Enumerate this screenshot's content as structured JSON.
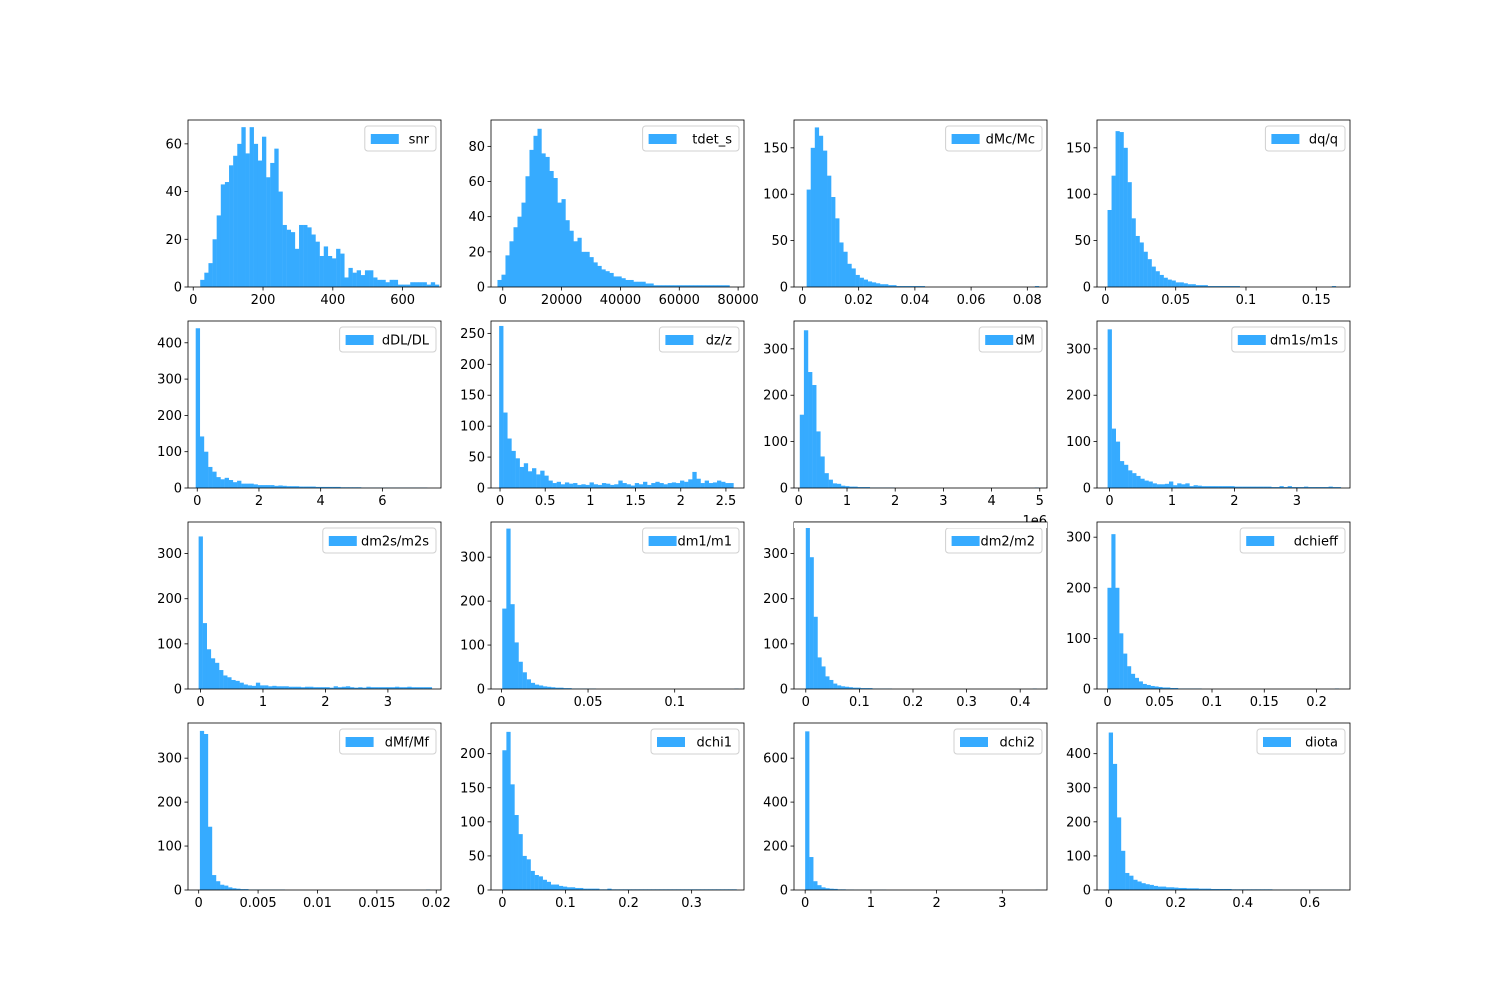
{
  "bar_color": "#36abff",
  "chart_data": [
    {
      "type": "bar",
      "legend": "snr",
      "legend_position": "upper-right",
      "xlim": [
        -15,
        710
      ],
      "ylim": [
        0,
        70
      ],
      "xticks": [
        0,
        200,
        400,
        600
      ],
      "yticks": [
        0,
        20,
        40,
        60
      ],
      "bin_width": 11.8,
      "x_start": 20,
      "values": [
        3,
        6,
        10,
        20,
        30,
        43,
        44,
        51,
        55,
        60,
        67,
        56,
        67,
        60,
        53,
        63,
        46,
        52,
        58,
        40,
        26,
        24,
        23,
        16,
        26,
        26,
        25,
        22,
        19,
        13,
        17,
        13,
        12,
        16,
        14,
        4,
        8,
        6,
        7,
        5,
        7,
        7,
        4,
        3,
        3,
        2,
        3,
        3,
        1,
        1,
        1,
        2,
        2,
        2,
        2,
        1,
        2,
        1
      ]
    },
    {
      "type": "bar",
      "legend": "tdet_s",
      "legend_position": "upper-right",
      "xlim": [
        -4000,
        82000
      ],
      "ylim": [
        0,
        95
      ],
      "xticks": [
        0,
        20000,
        40000,
        60000,
        80000
      ],
      "yticks": [
        0,
        20,
        40,
        60,
        80
      ],
      "bin_width": 1360,
      "x_start": -1800,
      "values": [
        4,
        7,
        18,
        26,
        34,
        40,
        48,
        63,
        78,
        86,
        90,
        76,
        74,
        66,
        62,
        48,
        50,
        38,
        32,
        26,
        28,
        20,
        20,
        17,
        14,
        12,
        10,
        9,
        8,
        6,
        6,
        5,
        4,
        4,
        3,
        3,
        3,
        2,
        2,
        1,
        1,
        1,
        1,
        1,
        1,
        1,
        1,
        1,
        1,
        1,
        1,
        1,
        1,
        1,
        1,
        1,
        1,
        1
      ]
    },
    {
      "type": "bar",
      "legend": "dMc/Mc",
      "legend_position": "upper-right",
      "xlim": [
        -0.003,
        0.087
      ],
      "ylim": [
        0,
        180
      ],
      "xticks": [
        0,
        0.02,
        0.04,
        0.06,
        0.08
      ],
      "yticks": [
        0,
        50,
        100,
        150
      ],
      "bin_width": 0.00145,
      "x_start": 0.0015,
      "values": [
        105,
        150,
        172,
        163,
        147,
        120,
        97,
        74,
        48,
        38,
        25,
        20,
        13,
        10,
        8,
        6,
        5,
        4,
        3,
        3,
        2,
        2,
        1,
        1,
        1,
        1,
        1,
        1,
        1,
        0,
        0,
        0,
        0,
        0,
        0,
        0,
        0,
        0,
        0,
        0,
        0,
        0,
        0,
        0,
        0,
        0,
        0,
        0,
        0,
        0,
        0,
        0,
        0,
        0,
        0,
        0,
        1
      ]
    },
    {
      "type": "bar",
      "legend": "dq/q",
      "legend_position": "upper-right",
      "xlim": [
        -0.006,
        0.174
      ],
      "ylim": [
        0,
        180
      ],
      "xticks": [
        0,
        0.05,
        0.1,
        0.15
      ],
      "yticks": [
        0,
        50,
        100,
        150
      ],
      "bin_width": 0.00285,
      "x_start": 0.0015,
      "values": [
        83,
        120,
        168,
        167,
        150,
        113,
        74,
        55,
        48,
        38,
        30,
        22,
        17,
        13,
        10,
        8,
        7,
        5,
        5,
        4,
        3,
        3,
        2,
        2,
        2,
        1,
        1,
        1,
        1,
        1,
        1,
        1,
        1,
        0,
        0,
        0,
        0,
        0,
        0,
        0,
        0,
        0,
        0,
        0,
        0,
        0,
        0,
        0,
        0,
        0,
        0,
        0,
        0,
        0,
        0,
        0,
        1
      ]
    },
    {
      "type": "bar",
      "legend": "dDL/DL",
      "legend_position": "upper-right",
      "xlim": [
        -0.3,
        7.9
      ],
      "ylim": [
        0,
        460
      ],
      "xticks": [
        0,
        2,
        4,
        6
      ],
      "yticks": [
        0,
        100,
        200,
        300,
        400
      ],
      "bin_width": 0.134,
      "x_start": -0.05,
      "values": [
        440,
        142,
        100,
        58,
        45,
        30,
        24,
        28,
        22,
        16,
        20,
        12,
        12,
        12,
        10,
        8,
        8,
        8,
        8,
        6,
        7,
        6,
        5,
        5,
        5,
        4,
        4,
        4,
        4,
        3,
        3,
        3,
        3,
        3,
        3,
        2,
        2,
        2,
        2,
        2,
        1,
        1,
        1,
        1,
        1,
        1,
        1,
        1,
        1,
        1,
        1,
        1,
        1,
        1,
        1,
        1
      ]
    },
    {
      "type": "bar",
      "legend": "dz/z",
      "legend_position": "upper-right",
      "xlim": [
        -0.1,
        2.7
      ],
      "ylim": [
        0,
        270
      ],
      "xticks": [
        0,
        0.5,
        1,
        1.5,
        2,
        2.5
      ],
      "yticks": [
        0,
        50,
        100,
        150,
        200,
        250
      ],
      "bin_width": 0.0455,
      "x_start": -0.01,
      "values": [
        262,
        122,
        80,
        60,
        48,
        34,
        40,
        27,
        32,
        22,
        28,
        20,
        12,
        8,
        10,
        6,
        9,
        7,
        8,
        5,
        6,
        5,
        9,
        6,
        5,
        8,
        7,
        5,
        6,
        12,
        8,
        6,
        4,
        8,
        6,
        10,
        5,
        8,
        10,
        8,
        6,
        8,
        9,
        8,
        12,
        10,
        14,
        26,
        15,
        8,
        12,
        8,
        9,
        12,
        10,
        8,
        8
      ]
    },
    {
      "type": "bar",
      "legend": "dM",
      "legend_position": "upper-right",
      "xlim": [
        -0.1,
        5.15
      ],
      "ylim": [
        0,
        360
      ],
      "xticks": [
        0,
        1,
        2,
        3,
        4,
        5
      ],
      "yticks": [
        0,
        100,
        200,
        300
      ],
      "bin_width": 0.0855,
      "x_start": 0.02,
      "values": [
        158,
        340,
        250,
        222,
        122,
        68,
        32,
        18,
        10,
        9,
        5,
        4,
        3,
        3,
        2,
        2,
        2,
        1,
        1,
        1,
        1,
        1,
        1,
        0,
        0,
        0,
        0,
        0,
        0,
        0,
        0,
        0,
        0,
        0,
        0,
        0,
        0,
        0,
        0,
        0,
        0,
        0,
        0,
        0,
        0,
        0,
        0,
        0,
        0,
        0,
        0,
        0,
        0,
        0,
        0,
        0,
        0,
        1
      ]
    },
    {
      "type": "bar",
      "legend": "dm1s/m1s",
      "legend_position": "upper-right",
      "xlim": [
        -0.2,
        3.85
      ],
      "ylim": [
        0,
        360
      ],
      "xticks": [
        0,
        1,
        2,
        3
      ],
      "yticks": [
        0,
        100,
        200,
        300
      ],
      "bin_width": 0.0655,
      "x_start": -0.03,
      "values": [
        342,
        128,
        100,
        58,
        50,
        38,
        32,
        26,
        20,
        16,
        14,
        10,
        8,
        8,
        9,
        14,
        6,
        10,
        8,
        10,
        4,
        6,
        5,
        4,
        4,
        4,
        4,
        4,
        4,
        4,
        4,
        3,
        3,
        3,
        3,
        3,
        3,
        3,
        3,
        3,
        2,
        2,
        4,
        2,
        4,
        2,
        2,
        2,
        3,
        2,
        2,
        2,
        2,
        2,
        3,
        2,
        2
      ]
    },
    {
      "type": "bar",
      "legend": "dm2s/m2s",
      "legend_position": "upper-right",
      "xlim": [
        -0.2,
        3.85
      ],
      "ylim": [
        0,
        370
      ],
      "xticks": [
        0,
        1,
        2,
        3
      ],
      "yticks": [
        0,
        100,
        200,
        300
      ],
      "bin_width": 0.0655,
      "x_start": -0.03,
      "values": [
        338,
        146,
        88,
        68,
        58,
        42,
        30,
        26,
        20,
        18,
        14,
        10,
        8,
        7,
        14,
        8,
        8,
        6,
        7,
        6,
        6,
        6,
        5,
        5,
        5,
        4,
        5,
        5,
        4,
        4,
        4,
        4,
        3,
        6,
        4,
        5,
        6,
        4,
        3,
        4,
        3,
        5,
        4,
        4,
        4,
        4,
        4,
        4,
        5,
        4,
        4,
        5,
        4,
        4,
        4,
        4,
        4
      ]
    },
    {
      "type": "bar",
      "legend": "dm1/m1",
      "legend_position": "upper-right",
      "xlim": [
        -0.006,
        0.14
      ],
      "ylim": [
        0,
        380
      ],
      "xticks": [
        0,
        0.05,
        0.1
      ],
      "yticks": [
        0,
        100,
        200,
        300
      ],
      "bin_width": 0.00235,
      "x_start": 0.0005,
      "values": [
        183,
        365,
        193,
        106,
        62,
        38,
        22,
        14,
        10,
        8,
        6,
        5,
        4,
        3,
        3,
        2,
        2,
        1,
        1,
        1,
        1,
        1,
        1,
        0,
        0,
        0,
        0,
        0,
        0,
        0,
        0,
        0,
        0,
        0,
        0,
        0,
        0,
        0,
        0,
        0,
        0,
        0,
        0,
        0,
        0,
        0,
        0,
        0,
        0,
        0,
        0,
        0,
        0,
        0,
        0,
        0,
        0,
        1
      ]
    },
    {
      "type": "bar",
      "legend": "dm2/m2",
      "legend_position": "upper-right",
      "xlim": [
        -0.022,
        0.45
      ],
      "ylim": [
        0,
        370
      ],
      "xticks": [
        0,
        0.1,
        0.2,
        0.3,
        0.4
      ],
      "yticks": [
        0,
        100,
        200,
        300
      ],
      "bin_width": 0.0073,
      "x_start": 0,
      "values": [
        358,
        292,
        160,
        70,
        50,
        28,
        20,
        12,
        8,
        6,
        5,
        4,
        3,
        3,
        2,
        2,
        2,
        1,
        1,
        1,
        1,
        1,
        0,
        0,
        0,
        0,
        0,
        0,
        0,
        0,
        0,
        0,
        0,
        0,
        0,
        0,
        0,
        0,
        0,
        0,
        0,
        0,
        0,
        0,
        0,
        0,
        0,
        0,
        0,
        0,
        0,
        0,
        0,
        0,
        0,
        0,
        0,
        0,
        1
      ]
    },
    {
      "type": "bar",
      "legend": "dchieff",
      "legend_position": "upper-right",
      "xlim": [
        -0.01,
        0.232
      ],
      "ylim": [
        0,
        330
      ],
      "xticks": [
        0,
        0.05,
        0.1,
        0.15,
        0.2
      ],
      "yticks": [
        0,
        100,
        200,
        300
      ],
      "bin_width": 0.00375,
      "x_start": 0,
      "values": [
        200,
        306,
        200,
        110,
        70,
        45,
        30,
        22,
        15,
        10,
        8,
        6,
        5,
        4,
        3,
        3,
        2,
        2,
        1,
        1,
        1,
        1,
        1,
        1,
        0,
        0,
        0,
        0,
        0,
        0,
        0,
        0,
        0,
        0,
        0,
        0,
        0,
        0,
        0,
        0,
        0,
        0,
        0,
        0,
        0,
        0,
        0,
        0,
        0,
        0,
        0,
        0,
        0,
        0,
        0,
        0,
        0,
        0,
        1
      ]
    },
    {
      "type": "bar",
      "legend": "dMf/Mf",
      "legend_position": "upper-right",
      "xlim": [
        -0.0009,
        0.0204
      ],
      "ylim": [
        0,
        380
      ],
      "xticks": [
        0,
        0.005,
        0.01,
        0.015,
        0.02
      ],
      "yticks": [
        0,
        100,
        200,
        300
      ],
      "bin_width": 0.00034,
      "x_start": 0.0001,
      "values": [
        362,
        355,
        144,
        34,
        20,
        12,
        10,
        6,
        4,
        3,
        2,
        2,
        1,
        1,
        1,
        1,
        1,
        1,
        1,
        1,
        1,
        0,
        0,
        0,
        0,
        0,
        0,
        0,
        0,
        0,
        0,
        0,
        0,
        0,
        0,
        0,
        0,
        0,
        0,
        0,
        0,
        0,
        0,
        0,
        0,
        0,
        0,
        0,
        0,
        0,
        0,
        0,
        0,
        0,
        0,
        0,
        1
      ]
    },
    {
      "type": "bar",
      "legend": "dchi1",
      "legend_position": "upper-right",
      "xlim": [
        -0.018,
        0.383
      ],
      "ylim": [
        0,
        245
      ],
      "xticks": [
        0,
        0.1,
        0.2,
        0.3
      ],
      "yticks": [
        0,
        50,
        100,
        150,
        200
      ],
      "bin_width": 0.0064,
      "x_start": 0,
      "values": [
        205,
        232,
        155,
        110,
        82,
        50,
        45,
        28,
        22,
        20,
        15,
        12,
        8,
        8,
        6,
        5,
        4,
        4,
        3,
        3,
        2,
        2,
        2,
        2,
        1,
        1,
        2,
        1,
        1,
        1,
        1,
        1,
        1,
        1,
        1,
        1,
        1,
        1,
        1,
        1,
        1,
        1,
        1,
        1,
        1,
        1,
        1,
        1,
        1,
        1,
        1,
        1,
        1,
        1,
        1,
        1,
        1,
        1
      ]
    },
    {
      "type": "bar",
      "legend": "dchi2",
      "legend_position": "upper-right",
      "xlim": [
        -0.17,
        3.68
      ],
      "ylim": [
        0,
        760
      ],
      "xticks": [
        0,
        1,
        2,
        3
      ],
      "yticks": [
        0,
        200,
        400,
        600
      ],
      "bin_width": 0.0615,
      "x_start": 0,
      "values": [
        722,
        150,
        40,
        22,
        12,
        8,
        6,
        5,
        3,
        3,
        2,
        2,
        1,
        1,
        1,
        1,
        1,
        1,
        1,
        1,
        0,
        0,
        0,
        0,
        0,
        0,
        0,
        0,
        0,
        0,
        0,
        0,
        0,
        0,
        0,
        0,
        0,
        0,
        0,
        0,
        0,
        0,
        0,
        0,
        0,
        0,
        0,
        0,
        0,
        0,
        0,
        0,
        0,
        0,
        0,
        0,
        0,
        1
      ]
    },
    {
      "type": "bar",
      "legend": "diota",
      "legend_position": "upper-right",
      "xlim": [
        -0.035,
        0.72
      ],
      "ylim": [
        0,
        490
      ],
      "xticks": [
        0,
        0.2,
        0.4,
        0.6
      ],
      "yticks": [
        0,
        100,
        200,
        300,
        400
      ],
      "bin_width": 0.0122,
      "x_start": 0,
      "values": [
        462,
        370,
        213,
        115,
        50,
        42,
        30,
        25,
        20,
        17,
        15,
        12,
        10,
        10,
        8,
        8,
        7,
        6,
        6,
        5,
        5,
        5,
        4,
        4,
        4,
        3,
        3,
        3,
        3,
        3,
        2,
        2,
        2,
        2,
        2,
        2,
        2,
        2,
        2,
        2,
        1,
        1,
        1,
        1,
        1,
        1,
        1,
        1,
        1,
        1,
        1,
        1,
        1,
        1,
        1,
        1,
        1,
        1
      ]
    }
  ],
  "offset_text": "1e6"
}
